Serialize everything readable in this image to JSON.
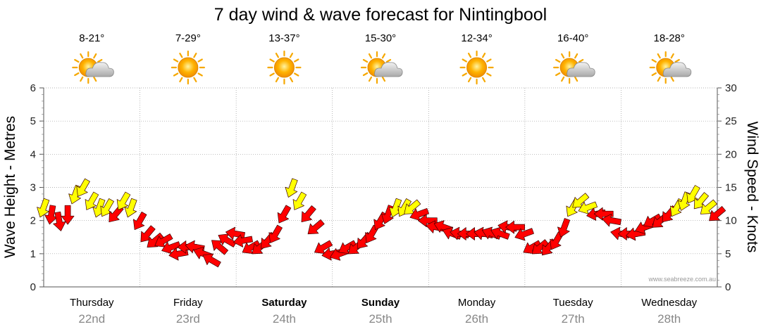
{
  "chart_data": {
    "type": "line",
    "title": "7 day wind & wave forecast for Nintingbool",
    "ylabel_left": "Wave Height - Metres",
    "ylabel_right": "Wind Speed - Knots",
    "ylim_left": [
      0,
      6
    ],
    "ylim_right": [
      0,
      30
    ],
    "yticks_left": [
      "0",
      "1",
      "2",
      "3",
      "4",
      "5",
      "6"
    ],
    "yticks_right": [
      "0",
      "5",
      "10",
      "15",
      "20",
      "25",
      "30"
    ],
    "grid": true,
    "credit": "www.seabreeze.com.au",
    "days": [
      {
        "name": "Thursday",
        "date": "22nd",
        "temp": "8-21°",
        "weather": "partly-cloudy-icon",
        "bold": false
      },
      {
        "name": "Friday",
        "date": "23rd",
        "temp": "7-29°",
        "weather": "sunny-icon",
        "bold": false
      },
      {
        "name": "Saturday",
        "date": "24th",
        "temp": "13-37°",
        "weather": "sunny-icon",
        "bold": true
      },
      {
        "name": "Sunday",
        "date": "25th",
        "temp": "15-30°",
        "weather": "partly-cloudy-icon",
        "bold": true
      },
      {
        "name": "Monday",
        "date": "26th",
        "temp": "12-34°",
        "weather": "sunny-icon",
        "bold": false
      },
      {
        "name": "Tuesday",
        "date": "27th",
        "temp": "16-40°",
        "weather": "partly-cloudy-icon",
        "bold": false
      },
      {
        "name": "Wednesday",
        "date": "28th",
        "temp": "18-28°",
        "weather": "partly-cloudy-icon",
        "bold": false
      }
    ],
    "series": [
      {
        "name": "wind",
        "unit": "knots",
        "x_days": [
          0.0,
          0.08,
          0.16,
          0.25,
          0.33,
          0.41,
          0.5,
          0.58,
          0.66,
          0.75,
          0.83,
          0.91,
          1.0,
          1.08,
          1.16,
          1.25,
          1.33,
          1.41,
          1.5,
          1.58,
          1.66,
          1.75,
          1.83,
          1.91,
          2.0,
          2.08,
          2.16,
          2.25,
          2.33,
          2.41,
          2.5,
          2.58,
          2.66,
          2.75,
          2.83,
          2.91,
          3.0,
          3.08,
          3.16,
          3.25,
          3.33,
          3.41,
          3.5,
          3.58,
          3.66,
          3.75,
          3.83,
          3.91,
          4.0,
          4.08,
          4.16,
          4.25,
          4.33,
          4.41,
          4.5,
          4.58,
          4.66,
          4.75,
          4.83,
          4.91,
          5.0,
          5.08,
          5.16,
          5.25,
          5.33,
          5.41,
          5.5,
          5.58,
          5.66,
          5.75,
          5.83,
          5.91,
          6.0,
          6.08,
          6.16,
          6.25,
          6.33,
          6.41,
          6.5,
          6.58,
          6.66,
          6.75,
          6.83,
          6.91,
          7.0
        ],
        "values": [
          12,
          11,
          10,
          11,
          14,
          15,
          13,
          12,
          12,
          11,
          13,
          12,
          10,
          8,
          7,
          7,
          6,
          5,
          6,
          6,
          5,
          4,
          6,
          7,
          8,
          7,
          6,
          6,
          7,
          8,
          11,
          15,
          13,
          11,
          9,
          6,
          5,
          5,
          6,
          6,
          7,
          8,
          10,
          11,
          12,
          12,
          12,
          11,
          10,
          9,
          9,
          8,
          8,
          8,
          8,
          8,
          8,
          8,
          9,
          9,
          8,
          6,
          6,
          6,
          7,
          9,
          12,
          13,
          12,
          11,
          11,
          10,
          8,
          8,
          8,
          9,
          10,
          10,
          11,
          12,
          13,
          14,
          13,
          12,
          11
        ]
      },
      {
        "name": "wind-direction",
        "unit": "degrees",
        "values": [
          200,
          190,
          170,
          180,
          200,
          210,
          210,
          200,
          210,
          220,
          210,
          200,
          210,
          220,
          230,
          240,
          250,
          260,
          270,
          280,
          290,
          300,
          310,
          300,
          280,
          260,
          240,
          230,
          220,
          210,
          210,
          200,
          210,
          220,
          230,
          240,
          260,
          250,
          240,
          230,
          220,
          210,
          210,
          200,
          200,
          210,
          230,
          250,
          270,
          280,
          290,
          290,
          280,
          270,
          270,
          280,
          290,
          290,
          280,
          270,
          250,
          240,
          230,
          220,
          210,
          200,
          210,
          230,
          250,
          260,
          270,
          280,
          280,
          270,
          260,
          250,
          240,
          230,
          220,
          210,
          200,
          210,
          220,
          230,
          230
        ]
      }
    ],
    "legend": "none",
    "color_scale": {
      "light": "#ffff00",
      "strong": "#ff0000",
      "threshold_knots": 12
    }
  }
}
